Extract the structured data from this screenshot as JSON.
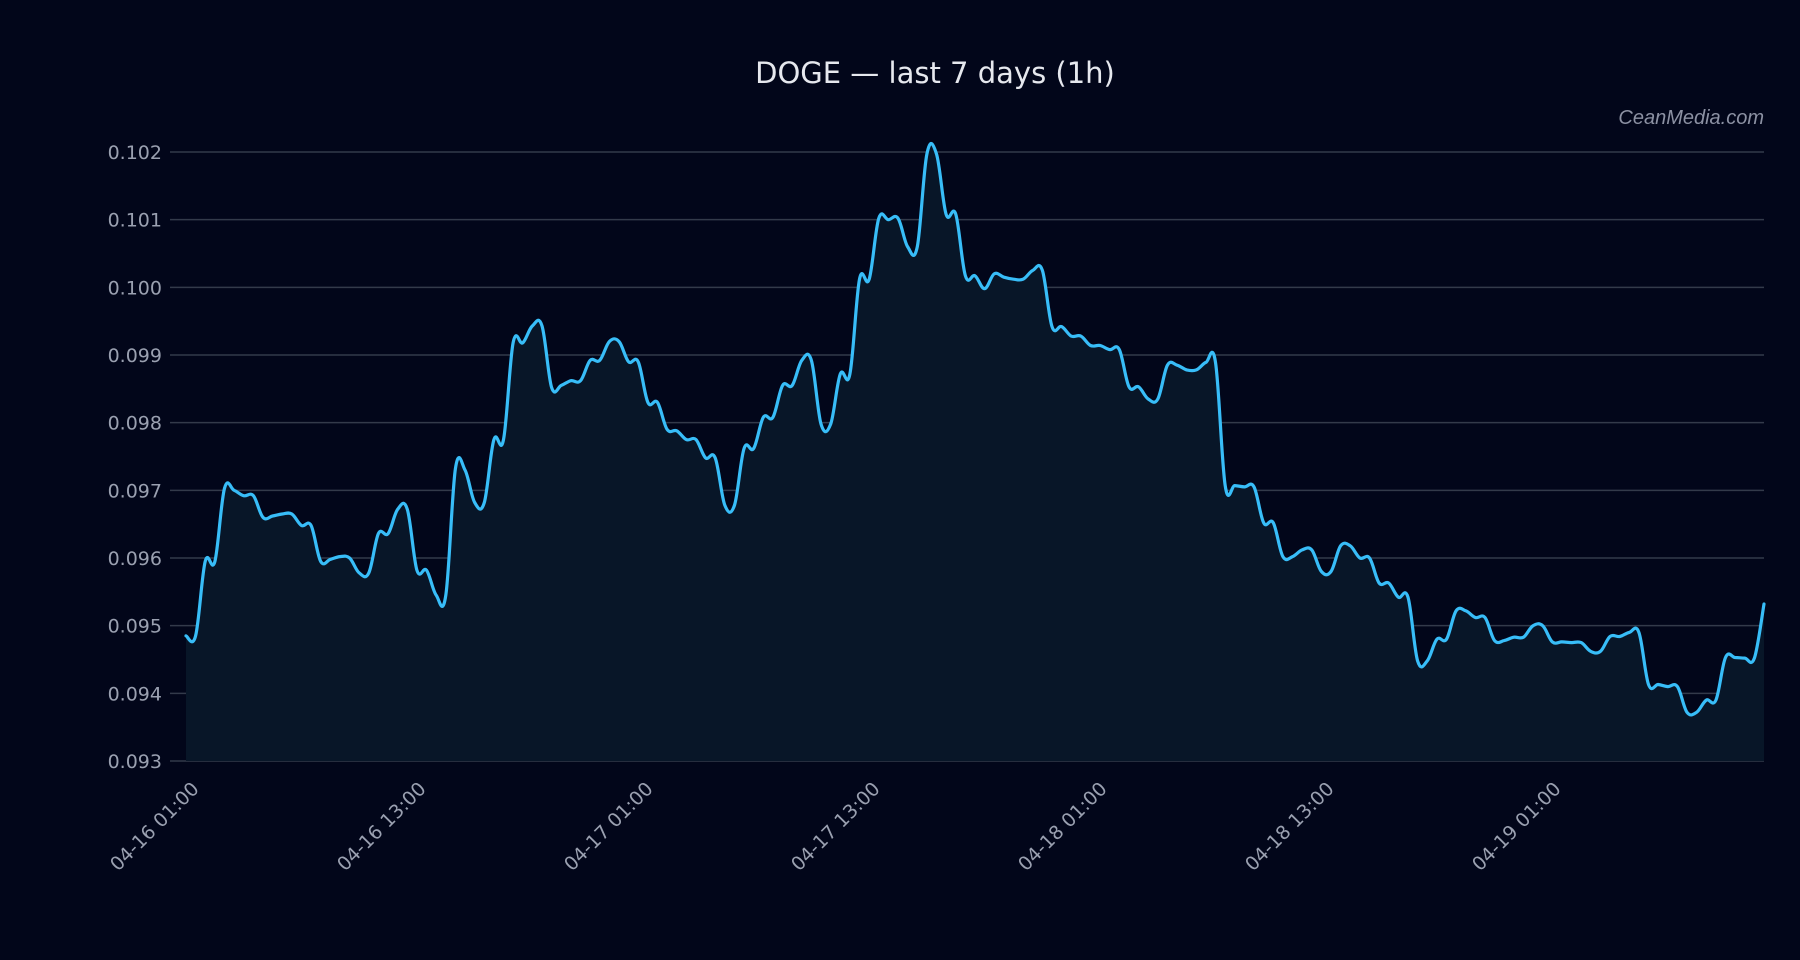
{
  "header": {
    "title": "DOGE — last 7 days (1h)",
    "watermark": "CeanMedia.com"
  },
  "colors": {
    "background": "#02061a",
    "line": "#38bdf8",
    "area": "#081628",
    "grid": "#333a4a",
    "text": "#9aa0b0"
  },
  "chart_data": {
    "type": "area",
    "title": "DOGE — last 7 days (1h)",
    "xlabel": "",
    "ylabel": "",
    "ylim": [
      0.093,
      0.102
    ],
    "grid": true,
    "legend": null,
    "yticks": [
      "0.093",
      "0.094",
      "0.095",
      "0.096",
      "0.097",
      "0.098",
      "0.099",
      "0.100",
      "0.101",
      "0.102"
    ],
    "xticks": [
      "04-16 01:00",
      "04-16 13:00",
      "04-17 01:00",
      "04-17 13:00",
      "04-18 01:00",
      "04-18 13:00",
      "04-19 01:00"
    ],
    "x_start": "04-16 01:00",
    "x_step_hours": 1,
    "values": [
      0.09485,
      0.09485,
      0.09595,
      0.09595,
      0.09703,
      0.097,
      0.09692,
      0.09692,
      0.0966,
      0.09662,
      0.09665,
      0.09665,
      0.09648,
      0.09648,
      0.09595,
      0.09598,
      0.09602,
      0.096,
      0.09578,
      0.09578,
      0.09636,
      0.09636,
      0.09672,
      0.09672,
      0.09582,
      0.09582,
      0.09545,
      0.09545,
      0.09732,
      0.0973,
      0.09682,
      0.09682,
      0.09775,
      0.09775,
      0.09918,
      0.09918,
      0.09943,
      0.09943,
      0.09852,
      0.09855,
      0.09862,
      0.09862,
      0.09892,
      0.09892,
      0.0992,
      0.0992,
      0.0989,
      0.0989,
      0.0983,
      0.0983,
      0.0979,
      0.09788,
      0.09775,
      0.09775,
      0.09748,
      0.09748,
      0.09678,
      0.09678,
      0.09762,
      0.09762,
      0.09808,
      0.09808,
      0.09855,
      0.09855,
      0.09892,
      0.09892,
      0.09798,
      0.09798,
      0.09872,
      0.09872,
      0.10012,
      0.10012,
      0.10102,
      0.101,
      0.10102,
      0.1006,
      0.1006,
      0.10197,
      0.10197,
      0.10108,
      0.10108,
      0.10017,
      0.10017,
      0.09998
    ],
    "values_part2": [
      0.09998,
      0.1002,
      0.10015,
      0.10012,
      0.10012,
      0.10025,
      0.10025,
      0.09942,
      0.09942,
      0.09928,
      0.09928,
      0.09914,
      0.09914,
      0.09908,
      0.09908,
      0.09853,
      0.09853,
      0.09835,
      0.09835,
      0.09885,
      0.09885,
      0.09878,
      0.09878,
      0.09889,
      0.09889,
      0.09707,
      0.09707,
      0.09705,
      0.09705,
      0.09652,
      0.09652,
      0.09602,
      0.09602,
      0.09612,
      0.09612,
      0.0958,
      0.0958,
      0.09618,
      0.09618,
      0.096,
      0.096,
      0.09563,
      0.09563,
      0.09542,
      0.09542,
      0.09448,
      0.09448,
      0.0948,
      0.0948,
      0.09522,
      0.09522,
      0.09512,
      0.09512,
      0.09478,
      0.09478,
      0.09483,
      0.09483,
      0.095,
      0.095,
      0.09476,
      0.09476,
      0.09475,
      0.09475,
      0.09462,
      0.09462,
      0.09484,
      0.09484,
      0.0949,
      0.0949,
      0.09413,
      0.09413,
      0.0941,
      0.0941,
      0.09372,
      0.09372,
      0.0939,
      0.0939,
      0.09453,
      0.09453,
      0.09452,
      0.09452,
      0.09532
    ]
  }
}
